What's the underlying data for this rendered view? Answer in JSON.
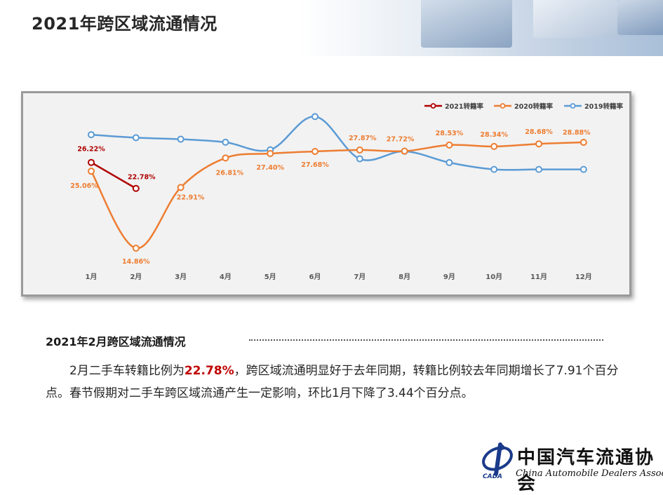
{
  "page_title": "2021年跨区域流通情况",
  "section_title": "2021年2月跨区域流通情况",
  "paragraph": {
    "part1": "2月二手车转籍比例为",
    "highlight": "22.78%",
    "part2": "，跨区域流通明显好于去年同期，转籍比例较去年同期增长了7.91个百分点。春节假期对二手车跨区域流通产生一定影响，环比1月下降了3.44个百分点。"
  },
  "logo": {
    "cn": "中国汽车流通协会",
    "en": "China Automobile Dealers Association",
    "abbr": "CADA"
  },
  "chart_data": {
    "type": "line",
    "categories": [
      "1月",
      "2月",
      "3月",
      "4月",
      "5月",
      "6月",
      "7月",
      "8月",
      "9月",
      "10月",
      "11月",
      "12月"
    ],
    "series": [
      {
        "name": "2021转籍率",
        "color": "#b00000",
        "values": [
          26.22,
          22.78,
          null,
          null,
          null,
          null,
          null,
          null,
          null,
          null,
          null,
          null
        ],
        "labels": [
          "26.22%",
          "22.78%",
          null,
          null,
          null,
          null,
          null,
          null,
          null,
          null,
          null,
          null
        ]
      },
      {
        "name": "2020转籍率",
        "color": "#ed7d31",
        "values": [
          25.06,
          14.86,
          22.91,
          26.81,
          27.4,
          27.68,
          27.87,
          27.72,
          28.53,
          28.34,
          28.68,
          28.88
        ],
        "labels": [
          "25.06%",
          "14.86%",
          "22.91%",
          "26.81%",
          "27.40%",
          "27.68%",
          "27.87%",
          "27.72%",
          "28.53%",
          "28.34%",
          "28.68%",
          "28.88%"
        ]
      },
      {
        "name": "2019转籍率",
        "color": "#5b9bd5",
        "values": [
          29.9,
          29.5,
          29.3,
          28.9,
          27.9,
          32.3,
          26.7,
          27.7,
          26.2,
          25.3,
          25.3,
          25.3
        ],
        "labels": [
          null,
          null,
          null,
          null,
          null,
          null,
          null,
          null,
          null,
          null,
          null,
          null
        ]
      }
    ],
    "legend_position": "top-right",
    "grid": false
  }
}
